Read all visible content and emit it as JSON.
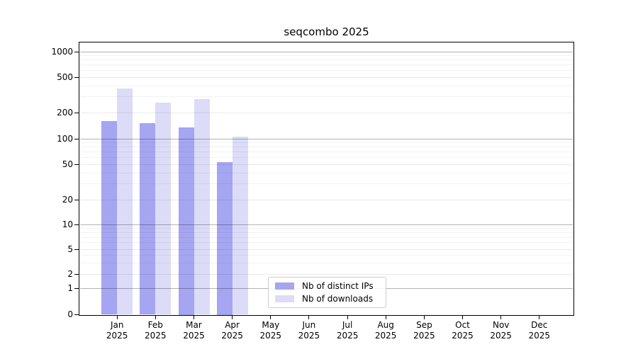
{
  "chart_data": {
    "type": "bar",
    "title": "seqcombo 2025",
    "categories": [
      "Jan 2025",
      "Feb 2025",
      "Mar 2025",
      "Apr 2025",
      "May 2025",
      "Jun 2025",
      "Jul 2025",
      "Aug 2025",
      "Sep 2025",
      "Oct 2025",
      "Nov 2025",
      "Dec 2025"
    ],
    "series": [
      {
        "name": "Nb of distinct IPs",
        "color": "#a5a5f2",
        "values": [
          160,
          150,
          135,
          53,
          null,
          null,
          null,
          null,
          null,
          null,
          null,
          null
        ]
      },
      {
        "name": "Nb of downloads",
        "color": "#dcdcf8",
        "values": [
          370,
          260,
          285,
          106,
          null,
          null,
          null,
          null,
          null,
          null,
          null,
          null
        ]
      }
    ],
    "yscale": "log-with-zero",
    "yticks": [
      1000,
      500,
      200,
      100,
      50,
      20,
      10,
      5,
      2,
      1,
      0
    ],
    "ylim": [
      0,
      1000
    ],
    "grid": true,
    "legend_position": "inside-bottom-center"
  },
  "colors": {
    "background": "#ffffff",
    "axis": "#000000",
    "grid_major": "rgba(0,0,0,0.30)",
    "grid_mid": "rgba(0,0,0,0.085)",
    "grid_minor": "rgba(0,0,0,0.05)",
    "legend_border": "#cccccc"
  }
}
